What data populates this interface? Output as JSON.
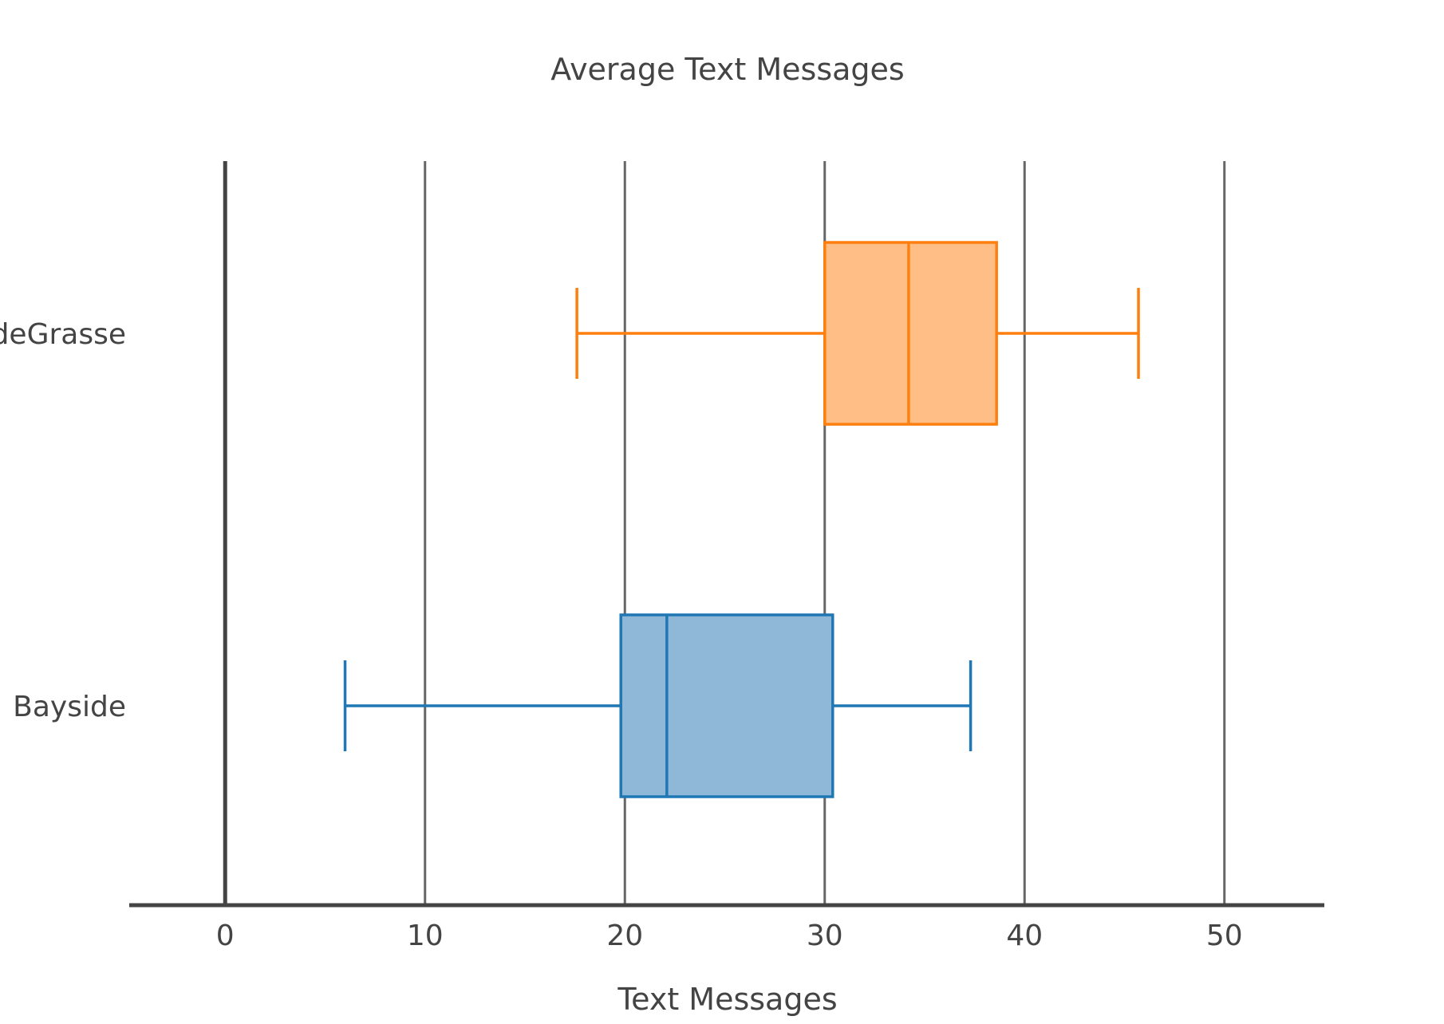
{
  "chart_data": {
    "type": "box",
    "orientation": "horizontal",
    "title": "Average Text Messages",
    "xlabel": "Text Messages",
    "ylabel": "",
    "xlim": [
      -4.8,
      55
    ],
    "xticks": [
      0,
      10,
      20,
      30,
      40,
      50
    ],
    "xtick_labels": [
      "0",
      "10",
      "20",
      "30",
      "40",
      "50"
    ],
    "grid": true,
    "legend": "none",
    "series": [
      {
        "category": "Bayside",
        "whisker_low": 6,
        "q1": 19.8,
        "median": 22.1,
        "q3": 30.4,
        "whisker_high": 37.3,
        "color": "#1f77b4",
        "fill": "#8fb8d8"
      },
      {
        "category": "deGrasse",
        "whisker_low": 17.6,
        "q1": 30,
        "median": 34.2,
        "q3": 38.6,
        "whisker_high": 45.7,
        "color": "#ff7f0e",
        "fill": "#ffbe86"
      }
    ]
  }
}
